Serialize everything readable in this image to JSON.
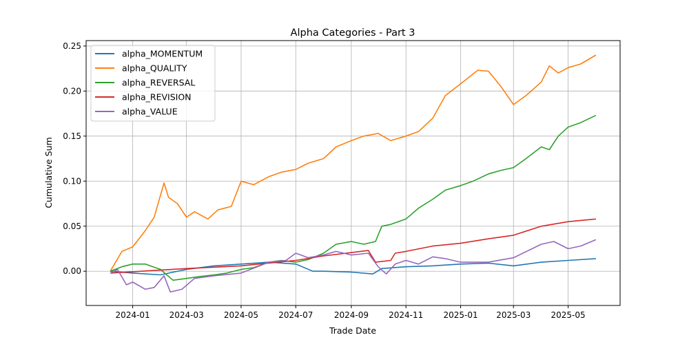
{
  "chart_data": {
    "type": "line",
    "title": "Alpha Categories - Part 3",
    "xlabel": "Trade Date",
    "ylabel": "Cumulative Sum",
    "xlim": [
      "2023-11-10",
      "2025-06-28"
    ],
    "ylim": [
      -0.038,
      0.256
    ],
    "grid": true,
    "legend_position": "top-left",
    "x_ticks": [
      {
        "date": "2024-01-01",
        "label": "2024-01"
      },
      {
        "date": "2024-03-01",
        "label": "2024-03"
      },
      {
        "date": "2024-05-01",
        "label": "2024-05"
      },
      {
        "date": "2024-07-01",
        "label": "2024-07"
      },
      {
        "date": "2024-09-01",
        "label": "2024-09"
      },
      {
        "date": "2024-11-01",
        "label": "2024-11"
      },
      {
        "date": "2025-01-01",
        "label": "2025-01"
      },
      {
        "date": "2025-03-01",
        "label": "2025-03"
      },
      {
        "date": "2025-05-01",
        "label": "2025-05"
      }
    ],
    "y_ticks": [
      {
        "value": 0.0,
        "label": "0.00"
      },
      {
        "value": 0.05,
        "label": "0.05"
      },
      {
        "value": 0.1,
        "label": "0.10"
      },
      {
        "value": 0.15,
        "label": "0.15"
      },
      {
        "value": 0.2,
        "label": "0.20"
      },
      {
        "value": 0.25,
        "label": "0.25"
      }
    ],
    "series": [
      {
        "name": "alpha_MOMENTUM",
        "color": "#1f77b4",
        "points": [
          [
            "2023-12-07",
            0
          ],
          [
            "2024-01-01",
            -0.002
          ],
          [
            "2024-02-01",
            -0.004
          ],
          [
            "2024-03-01",
            0.002
          ],
          [
            "2024-04-01",
            0.006
          ],
          [
            "2024-05-01",
            0.008
          ],
          [
            "2024-06-01",
            0.01
          ],
          [
            "2024-07-01",
            0.008
          ],
          [
            "2024-07-20",
            0.0
          ],
          [
            "2024-08-01",
            0.0
          ],
          [
            "2024-09-01",
            -0.001
          ],
          [
            "2024-09-25",
            -0.003
          ],
          [
            "2024-10-05",
            0.003
          ],
          [
            "2024-11-01",
            0.005
          ],
          [
            "2024-12-01",
            0.006
          ],
          [
            "2025-01-01",
            0.008
          ],
          [
            "2025-02-01",
            0.009
          ],
          [
            "2025-03-01",
            0.006
          ],
          [
            "2025-04-01",
            0.01
          ],
          [
            "2025-05-01",
            0.012
          ],
          [
            "2025-06-01",
            0.014
          ]
        ]
      },
      {
        "name": "alpha_QUALITY",
        "color": "#ff7f0e",
        "points": [
          [
            "2023-12-07",
            0
          ],
          [
            "2023-12-20",
            0.022
          ],
          [
            "2024-01-01",
            0.027
          ],
          [
            "2024-01-15",
            0.045
          ],
          [
            "2024-01-25",
            0.06
          ],
          [
            "2024-02-05",
            0.098
          ],
          [
            "2024-02-10",
            0.082
          ],
          [
            "2024-02-20",
            0.075
          ],
          [
            "2024-03-01",
            0.06
          ],
          [
            "2024-03-10",
            0.066
          ],
          [
            "2024-03-25",
            0.058
          ],
          [
            "2024-04-05",
            0.068
          ],
          [
            "2024-04-20",
            0.072
          ],
          [
            "2024-05-01",
            0.1
          ],
          [
            "2024-05-15",
            0.096
          ],
          [
            "2024-06-01",
            0.105
          ],
          [
            "2024-06-15",
            0.11
          ],
          [
            "2024-07-01",
            0.113
          ],
          [
            "2024-07-15",
            0.12
          ],
          [
            "2024-08-01",
            0.125
          ],
          [
            "2024-08-15",
            0.138
          ],
          [
            "2024-09-01",
            0.145
          ],
          [
            "2024-09-15",
            0.15
          ],
          [
            "2024-10-01",
            0.153
          ],
          [
            "2024-10-15",
            0.145
          ],
          [
            "2024-11-01",
            0.15
          ],
          [
            "2024-11-15",
            0.155
          ],
          [
            "2024-12-01",
            0.17
          ],
          [
            "2024-12-15",
            0.195
          ],
          [
            "2025-01-01",
            0.208
          ],
          [
            "2025-01-20",
            0.223
          ],
          [
            "2025-02-01",
            0.222
          ],
          [
            "2025-02-15",
            0.205
          ],
          [
            "2025-03-01",
            0.185
          ],
          [
            "2025-03-15",
            0.195
          ],
          [
            "2025-04-01",
            0.21
          ],
          [
            "2025-04-10",
            0.228
          ],
          [
            "2025-04-20",
            0.22
          ],
          [
            "2025-05-01",
            0.226
          ],
          [
            "2025-05-15",
            0.23
          ],
          [
            "2025-06-01",
            0.24
          ]
        ]
      },
      {
        "name": "alpha_REVERSAL",
        "color": "#2ca02c",
        "points": [
          [
            "2023-12-07",
            0
          ],
          [
            "2023-12-20",
            0.005
          ],
          [
            "2024-01-01",
            0.008
          ],
          [
            "2024-01-15",
            0.008
          ],
          [
            "2024-02-01",
            0.002
          ],
          [
            "2024-02-15",
            -0.01
          ],
          [
            "2024-03-01",
            -0.008
          ],
          [
            "2024-03-15",
            -0.006
          ],
          [
            "2024-04-01",
            -0.004
          ],
          [
            "2024-04-15",
            -0.002
          ],
          [
            "2024-05-01",
            0.002
          ],
          [
            "2024-05-15",
            0.004
          ],
          [
            "2024-06-01",
            0.01
          ],
          [
            "2024-06-15",
            0.012
          ],
          [
            "2024-07-01",
            0.01
          ],
          [
            "2024-07-15",
            0.013
          ],
          [
            "2024-08-01",
            0.02
          ],
          [
            "2024-08-15",
            0.03
          ],
          [
            "2024-09-01",
            0.033
          ],
          [
            "2024-09-15",
            0.03
          ],
          [
            "2024-09-28",
            0.033
          ],
          [
            "2024-10-05",
            0.05
          ],
          [
            "2024-10-15",
            0.052
          ],
          [
            "2024-11-01",
            0.058
          ],
          [
            "2024-11-15",
            0.07
          ],
          [
            "2024-12-01",
            0.08
          ],
          [
            "2024-12-15",
            0.09
          ],
          [
            "2025-01-01",
            0.095
          ],
          [
            "2025-01-15",
            0.1
          ],
          [
            "2025-02-01",
            0.108
          ],
          [
            "2025-02-15",
            0.112
          ],
          [
            "2025-03-01",
            0.115
          ],
          [
            "2025-03-15",
            0.125
          ],
          [
            "2025-04-01",
            0.138
          ],
          [
            "2025-04-10",
            0.135
          ],
          [
            "2025-04-20",
            0.15
          ],
          [
            "2025-05-01",
            0.16
          ],
          [
            "2025-05-15",
            0.165
          ],
          [
            "2025-06-01",
            0.173
          ]
        ]
      },
      {
        "name": "alpha_REVISION",
        "color": "#d62728",
        "points": [
          [
            "2023-12-07",
            -0.002
          ],
          [
            "2024-03-01",
            0.003
          ],
          [
            "2024-05-01",
            0.006
          ],
          [
            "2024-07-01",
            0.012
          ],
          [
            "2024-08-01",
            0.017
          ],
          [
            "2024-09-20",
            0.023
          ],
          [
            "2024-09-28",
            0.01
          ],
          [
            "2024-10-15",
            0.012
          ],
          [
            "2024-10-20",
            0.02
          ],
          [
            "2024-11-01",
            0.022
          ],
          [
            "2024-12-01",
            0.028
          ],
          [
            "2025-01-01",
            0.031
          ],
          [
            "2025-02-01",
            0.036
          ],
          [
            "2025-03-01",
            0.04
          ],
          [
            "2025-04-01",
            0.05
          ],
          [
            "2025-05-01",
            0.055
          ],
          [
            "2025-06-01",
            0.058
          ]
        ]
      },
      {
        "name": "alpha_VALUE",
        "color": "#9467bd",
        "points": [
          [
            "2023-12-07",
            -0.002
          ],
          [
            "2023-12-15",
            0.002
          ],
          [
            "2023-12-25",
            -0.015
          ],
          [
            "2024-01-01",
            -0.012
          ],
          [
            "2024-01-15",
            -0.02
          ],
          [
            "2024-01-25",
            -0.018
          ],
          [
            "2024-02-05",
            -0.005
          ],
          [
            "2024-02-12",
            -0.023
          ],
          [
            "2024-02-25",
            -0.02
          ],
          [
            "2024-03-10",
            -0.008
          ],
          [
            "2024-04-01",
            -0.005
          ],
          [
            "2024-05-01",
            -0.002
          ],
          [
            "2024-06-01",
            0.01
          ],
          [
            "2024-06-20",
            0.012
          ],
          [
            "2024-07-01",
            0.02
          ],
          [
            "2024-07-15",
            0.015
          ],
          [
            "2024-08-01",
            0.018
          ],
          [
            "2024-08-15",
            0.022
          ],
          [
            "2024-09-01",
            0.018
          ],
          [
            "2024-09-20",
            0.02
          ],
          [
            "2024-10-01",
            0.005
          ],
          [
            "2024-10-10",
            -0.003
          ],
          [
            "2024-10-20",
            0.008
          ],
          [
            "2024-11-01",
            0.012
          ],
          [
            "2024-11-15",
            0.008
          ],
          [
            "2024-12-01",
            0.016
          ],
          [
            "2024-12-15",
            0.014
          ],
          [
            "2025-01-01",
            0.01
          ],
          [
            "2025-02-01",
            0.01
          ],
          [
            "2025-03-01",
            0.015
          ],
          [
            "2025-04-01",
            0.03
          ],
          [
            "2025-04-15",
            0.033
          ],
          [
            "2025-05-01",
            0.025
          ],
          [
            "2025-05-15",
            0.028
          ],
          [
            "2025-06-01",
            0.035
          ]
        ]
      }
    ]
  }
}
